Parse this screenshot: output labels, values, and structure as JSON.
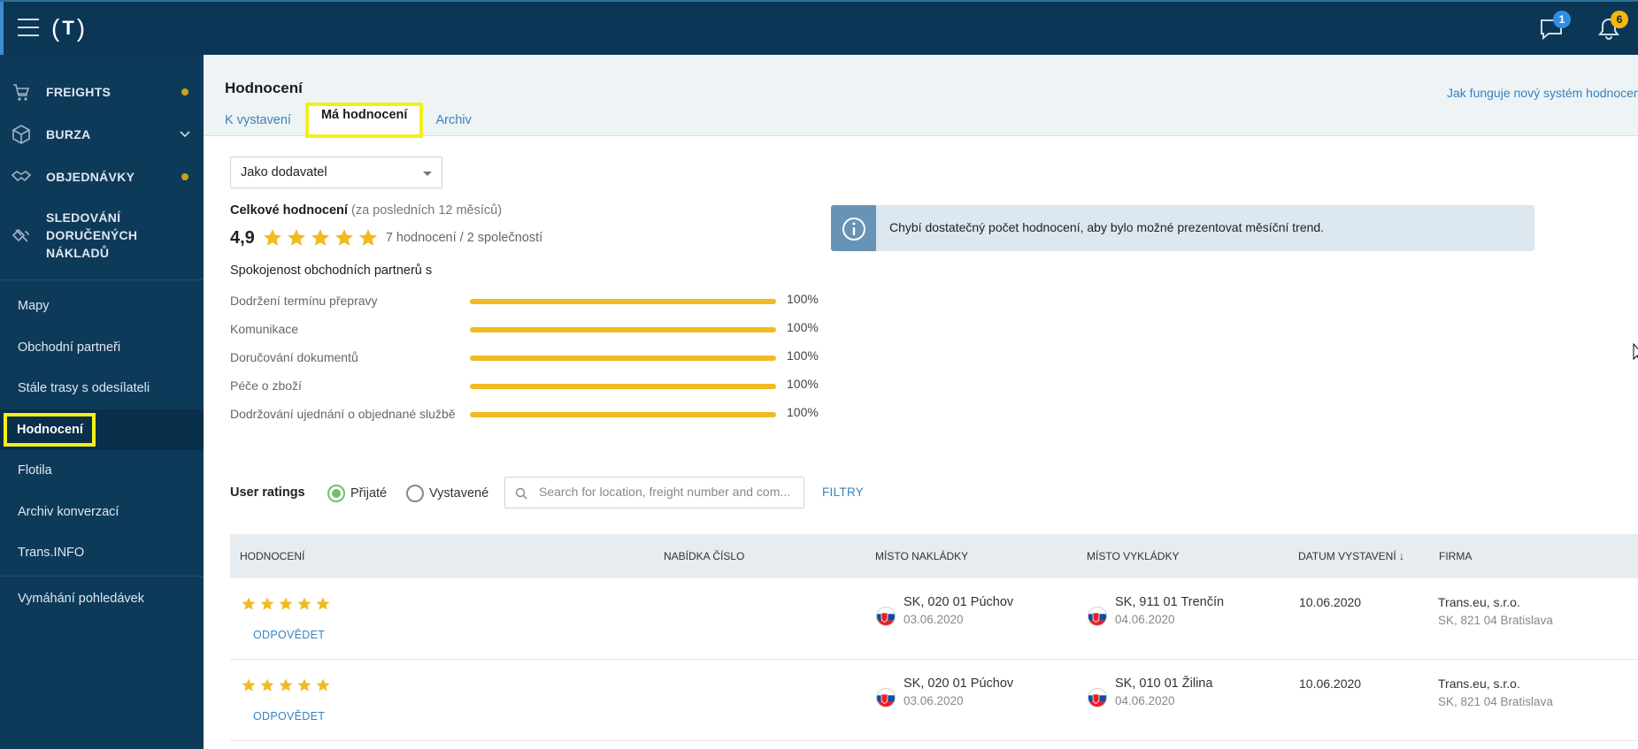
{
  "topbar": {
    "logo_text": "T",
    "messages_badge": "1",
    "notifications_badge": "6"
  },
  "sidebar": {
    "main_items": [
      {
        "label": "FREIGHTS",
        "icon": "cart-icon",
        "dot": true
      },
      {
        "label": "BURZA",
        "icon": "box-icon",
        "chevron": true
      },
      {
        "label": "OBJEDNÁVKY",
        "icon": "handshake-icon",
        "dot": true
      },
      {
        "label": "SLEDOVÁNÍ DORUČENÝCH NÁKLADŮ",
        "icon": "satellite-icon"
      }
    ],
    "sub_items": [
      {
        "label": "Mapy"
      },
      {
        "label": "Obchodní partneři"
      },
      {
        "label": "Stále trasy s odesílateli"
      },
      {
        "label": "Hodnocení",
        "active": true
      },
      {
        "label": "Flotila"
      },
      {
        "label": "Archiv konverzací"
      },
      {
        "label": "Trans.INFO"
      },
      {
        "label": "Vymáhání pohledávek"
      }
    ]
  },
  "header": {
    "title": "Hodnocení",
    "help_link": "Jak funguje nový systém hodnocení",
    "tabs": [
      {
        "label": "K vystavení"
      },
      {
        "label": "Má hodnocení",
        "active": true
      },
      {
        "label": "Archiv"
      }
    ]
  },
  "summary": {
    "role_select": "Jako dodavatel",
    "total_label": "Celkové hodnocení",
    "total_period": "(za posledních 12 měsíců)",
    "score": "4,9",
    "stars": 5,
    "count_text": "7 hodnocení / 2 společností",
    "satisfaction_label": "Spokojenost obchodních partnerů s",
    "metrics": [
      {
        "label": "Dodržení termínu přepravy",
        "value": "100%",
        "fraction": 1.0
      },
      {
        "label": "Komunikace",
        "value": "100%",
        "fraction": 1.0
      },
      {
        "label": "Doručování dokumentů",
        "value": "100%",
        "fraction": 1.0
      },
      {
        "label": "Péče o zboží",
        "value": "100%",
        "fraction": 1.0
      },
      {
        "label": "Dodržování ujednání o objednané službě",
        "value": "100%",
        "fraction": 1.0
      }
    ],
    "info_message": "Chybí dostatečný počet hodnocení, aby bylo možné prezentovat měsíční trend."
  },
  "ratings": {
    "label": "User ratings",
    "radio_received": "Přijaté",
    "radio_issued": "Vystavené",
    "search_placeholder": "Search for location, freight number and com...",
    "filter_button": "FILTRY",
    "columns": [
      "HODNOCENÍ",
      "NABÍDKA ČÍSLO",
      "MÍSTO NAKLÁDKY",
      "MÍSTO VYKLÁDKY",
      "DATUM VYSTAVENÍ ↓",
      "FIRMA"
    ],
    "rows": [
      {
        "stars": 5,
        "reply": "ODPOVĚDET",
        "load_place": "SK, 020 01 Púchov",
        "load_date": "03.06.2020",
        "unload_place": "SK, 911 01 Trenčín",
        "unload_date": "04.06.2020",
        "issued": "10.06.2020",
        "company": "Trans.eu, s.r.o.",
        "company_address": "SK, 821 04 Bratislava"
      },
      {
        "stars": 5,
        "reply": "ODPOVĚDET",
        "load_place": "SK, 020 01 Púchov",
        "load_date": "03.06.2020",
        "unload_place": "SK, 010 01 Žilina",
        "unload_date": "04.06.2020",
        "issued": "10.06.2020",
        "company": "Trans.eu, s.r.o.",
        "company_address": "SK, 821 04 Bratislava"
      }
    ]
  },
  "colors": {
    "topbar": "#0c3656",
    "sidebar": "#0e3a5a",
    "accent_link": "#3583be",
    "star": "#f0bb22",
    "highlight": "#f2ef1a",
    "radio_checked": "#6fc167"
  }
}
